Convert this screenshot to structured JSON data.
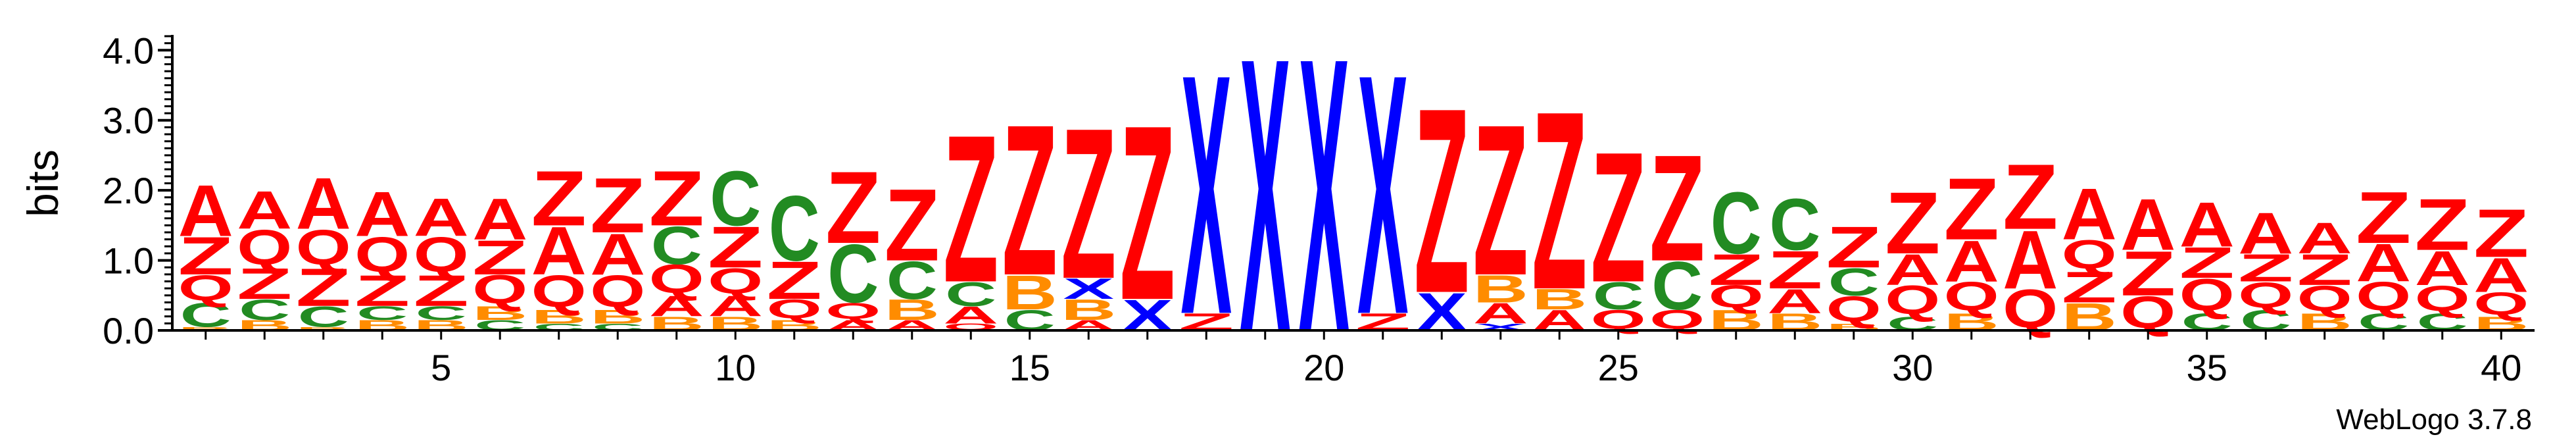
{
  "chart_data": {
    "type": "sequence-logo",
    "ylabel": "bits",
    "ylim": [
      0,
      4.2
    ],
    "y_ticks": [
      "0.0",
      "1.0",
      "2.0",
      "3.0",
      "4.0"
    ],
    "x_ticks": [
      "5",
      "10",
      "15",
      "20",
      "25",
      "30",
      "35",
      "40"
    ],
    "x_tick_positions": [
      5,
      10,
      15,
      20,
      25,
      30,
      35,
      40
    ],
    "positions": [
      1,
      40
    ],
    "colors": {
      "A": "#ff0000",
      "Z": "#ff0000",
      "Q": "#ff0000",
      "X": "#0000ff",
      "C": "#228b22",
      "B": "#ff8c00"
    },
    "columns": [
      {
        "position": 1,
        "stack": [
          [
            "B",
            0.05
          ],
          [
            "C",
            0.35
          ],
          [
            "Q",
            0.4
          ],
          [
            "Z",
            0.55
          ],
          [
            "A",
            0.75
          ]
        ]
      },
      {
        "position": 2,
        "stack": [
          [
            "B",
            0.15
          ],
          [
            "C",
            0.3
          ],
          [
            "Z",
            0.45
          ],
          [
            "Q",
            0.55
          ],
          [
            "A",
            0.55
          ]
        ]
      },
      {
        "position": 3,
        "stack": [
          [
            "B",
            0.05
          ],
          [
            "C",
            0.3
          ],
          [
            "Z",
            0.55
          ],
          [
            "Q",
            0.55
          ],
          [
            "A",
            0.75
          ]
        ]
      },
      {
        "position": 4,
        "stack": [
          [
            "B",
            0.15
          ],
          [
            "C",
            0.2
          ],
          [
            "Z",
            0.45
          ],
          [
            "Q",
            0.55
          ],
          [
            "A",
            0.65
          ]
        ]
      },
      {
        "position": 5,
        "stack": [
          [
            "B",
            0.15
          ],
          [
            "C",
            0.2
          ],
          [
            "Z",
            0.45
          ],
          [
            "Q",
            0.55
          ],
          [
            "A",
            0.55
          ]
        ]
      },
      {
        "position": 6,
        "stack": [
          [
            "C",
            0.15
          ],
          [
            "B",
            0.2
          ],
          [
            "Q",
            0.45
          ],
          [
            "Z",
            0.5
          ],
          [
            "A",
            0.6
          ]
        ]
      },
      {
        "position": 7,
        "stack": [
          [
            "C",
            0.1
          ],
          [
            "B",
            0.2
          ],
          [
            "Q",
            0.5
          ],
          [
            "A",
            0.7
          ],
          [
            "Z",
            0.8
          ]
        ]
      },
      {
        "position": 8,
        "stack": [
          [
            "C",
            0.1
          ],
          [
            "B",
            0.2
          ],
          [
            "Q",
            0.5
          ],
          [
            "A",
            0.6
          ],
          [
            "Z",
            0.8
          ]
        ]
      },
      {
        "position": 9,
        "stack": [
          [
            "B",
            0.2
          ],
          [
            "A",
            0.3
          ],
          [
            "Q",
            0.45
          ],
          [
            "C",
            0.55
          ],
          [
            "Z",
            0.8
          ]
        ]
      },
      {
        "position": 10,
        "stack": [
          [
            "B",
            0.2
          ],
          [
            "A",
            0.3
          ],
          [
            "Q",
            0.4
          ],
          [
            "Z",
            0.6
          ],
          [
            "C",
            0.8
          ]
        ]
      },
      {
        "position": 11,
        "stack": [
          [
            "B",
            0.15
          ],
          [
            "Q",
            0.3
          ],
          [
            "Z",
            0.55
          ],
          [
            "C",
            0.95
          ]
        ]
      },
      {
        "position": 12,
        "stack": [
          [
            "A",
            0.15
          ],
          [
            "Q",
            0.25
          ],
          [
            "C",
            0.85
          ],
          [
            "Z",
            1.05
          ]
        ]
      },
      {
        "position": 13,
        "stack": [
          [
            "A",
            0.15
          ],
          [
            "B",
            0.3
          ],
          [
            "C",
            0.55
          ],
          [
            "Z",
            1.05
          ]
        ]
      },
      {
        "position": 14,
        "stack": [
          [
            "Q",
            0.1
          ],
          [
            "A",
            0.25
          ],
          [
            "C",
            0.35
          ],
          [
            "Z",
            2.15
          ]
        ]
      },
      {
        "position": 15,
        "stack": [
          [
            "C",
            0.3
          ],
          [
            "B",
            0.5
          ],
          [
            "Z",
            2.2
          ]
        ]
      },
      {
        "position": 16,
        "stack": [
          [
            "A",
            0.15
          ],
          [
            "B",
            0.3
          ],
          [
            "X",
            0.3
          ],
          [
            "Z",
            2.2
          ]
        ]
      },
      {
        "position": 17,
        "stack": [
          [
            "X",
            0.45
          ],
          [
            "Z",
            2.55
          ]
        ]
      },
      {
        "position": 18,
        "stack": [
          [
            "Z",
            0.25
          ],
          [
            "X",
            3.5
          ]
        ]
      },
      {
        "position": 19,
        "stack": [
          [
            "X",
            4.0
          ]
        ]
      },
      {
        "position": 20,
        "stack": [
          [
            "X",
            4.0
          ]
        ]
      },
      {
        "position": 21,
        "stack": [
          [
            "Z",
            0.25
          ],
          [
            "X",
            3.5
          ]
        ]
      },
      {
        "position": 22,
        "stack": [
          [
            "X",
            0.55
          ],
          [
            "Z",
            2.7
          ]
        ]
      },
      {
        "position": 23,
        "stack": [
          [
            "X",
            0.1
          ],
          [
            "A",
            0.3
          ],
          [
            "B",
            0.4
          ],
          [
            "Z",
            2.2
          ]
        ]
      },
      {
        "position": 24,
        "stack": [
          [
            "A",
            0.3
          ],
          [
            "B",
            0.3
          ],
          [
            "Z",
            2.6
          ]
        ]
      },
      {
        "position": 25,
        "stack": [
          [
            "Q",
            0.3
          ],
          [
            "C",
            0.4
          ],
          [
            "Z",
            1.9
          ]
        ]
      },
      {
        "position": 26,
        "stack": [
          [
            "Q",
            0.3
          ],
          [
            "C",
            0.7
          ],
          [
            "Z",
            1.55
          ]
        ]
      },
      {
        "position": 27,
        "stack": [
          [
            "B",
            0.3
          ],
          [
            "Q",
            0.35
          ],
          [
            "Z",
            0.45
          ],
          [
            "C",
            0.9
          ]
        ]
      },
      {
        "position": 28,
        "stack": [
          [
            "B",
            0.25
          ],
          [
            "A",
            0.35
          ],
          [
            "Z",
            0.55
          ],
          [
            "C",
            0.75
          ]
        ]
      },
      {
        "position": 29,
        "stack": [
          [
            "B",
            0.1
          ],
          [
            "Q",
            0.4
          ],
          [
            "C",
            0.4
          ],
          [
            "Z",
            0.6
          ]
        ]
      },
      {
        "position": 30,
        "stack": [
          [
            "C",
            0.2
          ],
          [
            "Q",
            0.45
          ],
          [
            "A",
            0.45
          ],
          [
            "Z",
            0.9
          ]
        ]
      },
      {
        "position": 31,
        "stack": [
          [
            "B",
            0.25
          ],
          [
            "Q",
            0.45
          ],
          [
            "A",
            0.6
          ],
          [
            "Z",
            0.9
          ]
        ]
      },
      {
        "position": 32,
        "stack": [
          [
            "Q",
            0.6
          ],
          [
            "A",
            0.85
          ],
          [
            "Z",
            0.95
          ]
        ]
      },
      {
        "position": 33,
        "stack": [
          [
            "B",
            0.4
          ],
          [
            "Z",
            0.45
          ],
          [
            "Q",
            0.45
          ],
          [
            "A",
            0.75
          ]
        ]
      },
      {
        "position": 34,
        "stack": [
          [
            "Q",
            0.5
          ],
          [
            "Z",
            0.65
          ],
          [
            "A",
            0.75
          ]
        ]
      },
      {
        "position": 35,
        "stack": [
          [
            "C",
            0.25
          ],
          [
            "Q",
            0.5
          ],
          [
            "Z",
            0.45
          ],
          [
            "A",
            0.65
          ]
        ]
      },
      {
        "position": 36,
        "stack": [
          [
            "C",
            0.3
          ],
          [
            "Q",
            0.4
          ],
          [
            "Z",
            0.4
          ],
          [
            "A",
            0.6
          ]
        ]
      },
      {
        "position": 37,
        "stack": [
          [
            "B",
            0.25
          ],
          [
            "Q",
            0.4
          ],
          [
            "Z",
            0.45
          ],
          [
            "A",
            0.45
          ]
        ]
      },
      {
        "position": 38,
        "stack": [
          [
            "C",
            0.25
          ],
          [
            "Q",
            0.45
          ],
          [
            "A",
            0.55
          ],
          [
            "Z",
            0.75
          ]
        ]
      },
      {
        "position": 39,
        "stack": [
          [
            "C",
            0.25
          ],
          [
            "Q",
            0.4
          ],
          [
            "A",
            0.5
          ],
          [
            "Z",
            0.75
          ]
        ]
      },
      {
        "position": 40,
        "stack": [
          [
            "B",
            0.2
          ],
          [
            "Q",
            0.35
          ],
          [
            "A",
            0.5
          ],
          [
            "Z",
            0.7
          ]
        ]
      }
    ]
  },
  "footer": {
    "label": "WebLogo 3.7.8"
  }
}
